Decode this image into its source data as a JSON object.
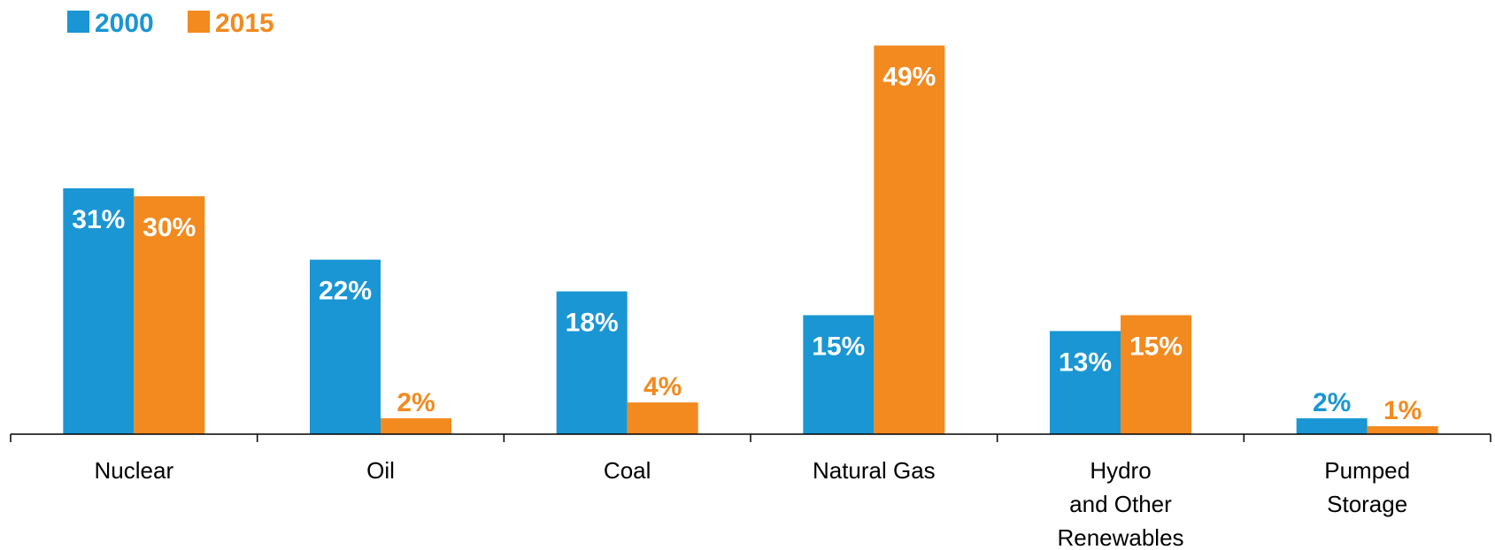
{
  "chart_data": {
    "type": "bar",
    "categories": [
      [
        "Nuclear"
      ],
      [
        "Oil"
      ],
      [
        "Coal"
      ],
      [
        "Natural Gas"
      ],
      [
        "Hydro",
        "and Other",
        "Renewables"
      ],
      [
        "Pumped",
        "Storage"
      ]
    ],
    "series": [
      {
        "name": "2000",
        "color": "#1a96d4",
        "values": [
          31,
          22,
          18,
          15,
          13,
          2
        ],
        "labels": [
          "31%",
          "22%",
          "18%",
          "15%",
          "13%",
          "2%"
        ]
      },
      {
        "name": "2015",
        "color": "#f28a1f",
        "values": [
          30,
          2,
          4,
          49,
          15,
          1
        ],
        "labels": [
          "30%",
          "2%",
          "4%",
          "49%",
          "15%",
          "1%"
        ]
      }
    ],
    "value_label_color_inside": "#ffffff",
    "title": "",
    "xlabel": "",
    "ylabel": "",
    "ylim": [
      0,
      50
    ],
    "grid": false,
    "legend_position": "top-left"
  }
}
